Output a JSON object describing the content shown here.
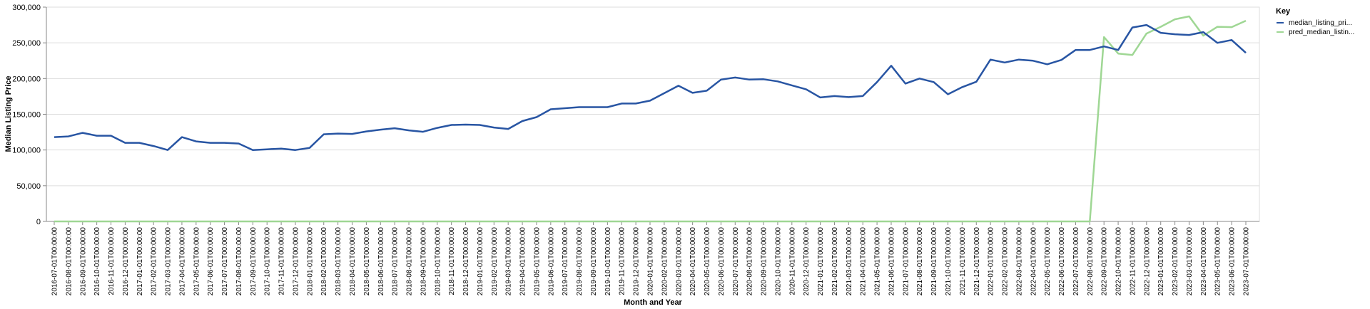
{
  "chart_data": {
    "type": "line",
    "title": "",
    "xlabel": "Month and Year",
    "ylabel": "Median Listing Price",
    "ylim": [
      0,
      300000
    ],
    "y_ticks": [
      "0",
      "50,000",
      "100,000",
      "150,000",
      "200,000",
      "250,000",
      "300,000"
    ],
    "grid": true,
    "legend_placement": "right",
    "legend_title": "Key",
    "x": [
      "2016-07-01T00:00:00",
      "2016-08-01T00:00:00",
      "2016-09-01T00:00:00",
      "2016-10-01T00:00:00",
      "2016-11-01T00:00:00",
      "2016-12-01T00:00:00",
      "2017-01-01T00:00:00",
      "2017-02-01T00:00:00",
      "2017-03-01T00:00:00",
      "2017-04-01T00:00:00",
      "2017-05-01T00:00:00",
      "2017-06-01T00:00:00",
      "2017-07-01T00:00:00",
      "2017-08-01T00:00:00",
      "2017-09-01T00:00:00",
      "2017-10-01T00:00:00",
      "2017-11-01T00:00:00",
      "2017-12-01T00:00:00",
      "2018-01-01T00:00:00",
      "2018-02-01T00:00:00",
      "2018-03-01T00:00:00",
      "2018-04-01T00:00:00",
      "2018-05-01T00:00:00",
      "2018-06-01T00:00:00",
      "2018-07-01T00:00:00",
      "2018-08-01T00:00:00",
      "2018-09-01T00:00:00",
      "2018-10-01T00:00:00",
      "2018-11-01T00:00:00",
      "2018-12-01T00:00:00",
      "2019-01-01T00:00:00",
      "2019-02-01T00:00:00",
      "2019-03-01T00:00:00",
      "2019-04-01T00:00:00",
      "2019-05-01T00:00:00",
      "2019-06-01T00:00:00",
      "2019-07-01T00:00:00",
      "2019-08-01T00:00:00",
      "2019-09-01T00:00:00",
      "2019-10-01T00:00:00",
      "2019-11-01T00:00:00",
      "2019-12-01T00:00:00",
      "2020-01-01T00:00:00",
      "2020-02-01T00:00:00",
      "2020-03-01T00:00:00",
      "2020-04-01T00:00:00",
      "2020-05-01T00:00:00",
      "2020-06-01T00:00:00",
      "2020-07-01T00:00:00",
      "2020-08-01T00:00:00",
      "2020-09-01T00:00:00",
      "2020-10-01T00:00:00",
      "2020-11-01T00:00:00",
      "2020-12-01T00:00:00",
      "2021-01-01T00:00:00",
      "2021-02-01T00:00:00",
      "2021-03-01T00:00:00",
      "2021-04-01T00:00:00",
      "2021-05-01T00:00:00",
      "2021-06-01T00:00:00",
      "2021-07-01T00:00:00",
      "2021-08-01T00:00:00",
      "2021-09-01T00:00:00",
      "2021-10-01T00:00:00",
      "2021-11-01T00:00:00",
      "2021-12-01T00:00:00",
      "2022-01-01T00:00:00",
      "2022-02-01T00:00:00",
      "2022-03-01T00:00:00",
      "2022-04-01T00:00:00",
      "2022-05-01T00:00:00",
      "2022-06-01T00:00:00",
      "2022-07-01T00:00:00",
      "2022-08-01T00:00:00",
      "2022-09-01T00:00:00",
      "2022-10-01T00:00:00",
      "2022-11-01T00:00:00",
      "2022-12-01T00:00:00",
      "2023-01-01T00:00:00",
      "2023-02-01T00:00:00",
      "2023-03-01T00:00:00",
      "2023-04-01T00:00:00",
      "2023-05-01T00:00:00",
      "2023-06-01T00:00:00",
      "2023-07-01T00:00:00"
    ],
    "series": [
      {
        "name": "median_listing_pri...",
        "color": "#2855a3",
        "values": [
          118000,
          119000,
          124000,
          120000,
          120000,
          110000,
          110000,
          105500,
          100000,
          118000,
          112000,
          110000,
          110000,
          109000,
          100000,
          101000,
          102000,
          100000,
          103000,
          122000,
          123000,
          122500,
          126000,
          128500,
          130500,
          127500,
          125500,
          131000,
          135000,
          135500,
          135000,
          131500,
          129500,
          140500,
          146000,
          157000,
          158500,
          160000,
          160000,
          160000,
          165000,
          165000,
          169000,
          179500,
          190000,
          180000,
          183000,
          198500,
          201500,
          198500,
          199000,
          196000,
          190500,
          185000,
          173500,
          175500,
          174000,
          175500,
          195000,
          218000,
          193000,
          200000,
          195000,
          178000,
          188000,
          195500,
          226500,
          222500,
          226500,
          225000,
          220000,
          226000,
          240000,
          240000,
          245000,
          240000,
          271500,
          275000,
          264000,
          262000,
          261000,
          265000,
          250000,
          254000,
          236000
        ]
      },
      {
        "name": "pred_median_listin...",
        "color": "#9fd794",
        "values": [
          0,
          0,
          0,
          0,
          0,
          0,
          0,
          0,
          0,
          0,
          0,
          0,
          0,
          0,
          0,
          0,
          0,
          0,
          0,
          0,
          0,
          0,
          0,
          0,
          0,
          0,
          0,
          0,
          0,
          0,
          0,
          0,
          0,
          0,
          0,
          0,
          0,
          0,
          0,
          0,
          0,
          0,
          0,
          0,
          0,
          0,
          0,
          0,
          0,
          0,
          0,
          0,
          0,
          0,
          0,
          0,
          0,
          0,
          0,
          0,
          0,
          0,
          0,
          0,
          0,
          0,
          0,
          0,
          0,
          0,
          0,
          0,
          0,
          0,
          258000,
          235000,
          233000,
          263000,
          272500,
          283000,
          287000,
          260000,
          272500,
          272000,
          281000
        ]
      }
    ]
  }
}
